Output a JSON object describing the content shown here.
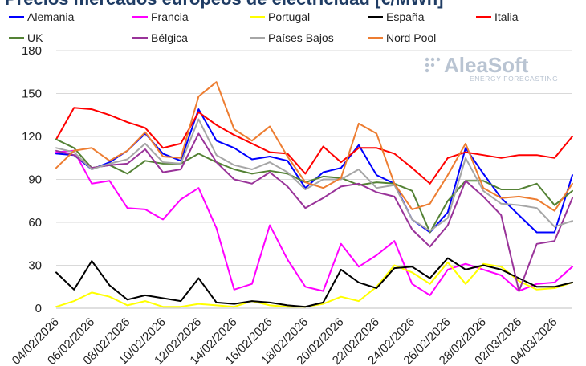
{
  "chart_data": {
    "type": "line",
    "title": "Precios mercados europeos de electricidad [€/MWh]",
    "ylim": [
      0,
      180
    ],
    "yticks": [
      0,
      30,
      60,
      90,
      120,
      150,
      180
    ],
    "xtick_labels": [
      "04/02/2026",
      "06/02/2026",
      "08/02/2026",
      "10/02/2026",
      "12/02/2026",
      "14/02/2026",
      "16/02/2026",
      "18/02/2026",
      "20/02/2026",
      "22/02/2026",
      "24/02/2026",
      "26/02/2026",
      "28/02/2026",
      "02/03/2026",
      "04/03/2026"
    ],
    "xtick_indices": [
      0,
      2,
      4,
      6,
      8,
      10,
      12,
      14,
      16,
      18,
      20,
      22,
      24,
      26,
      28
    ],
    "num_points": 30,
    "series": [
      {
        "name": "Alemania",
        "color": "#0000ff",
        "values": [
          108,
          107,
          97,
          102,
          110,
          122,
          108,
          103,
          139,
          117,
          112,
          104,
          106,
          103,
          84,
          95,
          98,
          114,
          93,
          87,
          62,
          53,
          67,
          112,
          94,
          77,
          65,
          53,
          53,
          93
        ]
      },
      {
        "name": "Francia",
        "color": "#ff00ff",
        "values": [
          109,
          110,
          87,
          89,
          70,
          69,
          62,
          76,
          84,
          56,
          13,
          17,
          58,
          34,
          15,
          12,
          45,
          29,
          37,
          47,
          17,
          9,
          27,
          31,
          27,
          23,
          12,
          17,
          18,
          29
        ]
      },
      {
        "name": "Portugal",
        "color": "#ffff00",
        "values": [
          1,
          5,
          11,
          8,
          2,
          5,
          1,
          1,
          3,
          2,
          1,
          5,
          2,
          1,
          1,
          3,
          8,
          5,
          15,
          30,
          25,
          17,
          32,
          17,
          31,
          29,
          19,
          13,
          14,
          18
        ]
      },
      {
        "name": "España",
        "color": "#000000",
        "values": [
          25,
          13,
          33,
          16,
          6,
          9,
          7,
          5,
          21,
          4,
          3,
          5,
          4,
          2,
          1,
          4,
          27,
          18,
          14,
          28,
          29,
          21,
          35,
          27,
          30,
          27,
          21,
          15,
          15,
          18
        ]
      },
      {
        "name": "Italia",
        "color": "#ff0000",
        "values": [
          118,
          140,
          139,
          135,
          130,
          126,
          112,
          115,
          137,
          128,
          121,
          115,
          109,
          108,
          94,
          113,
          102,
          112,
          112,
          108,
          98,
          87,
          105,
          109,
          107,
          105,
          107,
          107,
          105,
          120
        ]
      },
      {
        "name": "UK",
        "color": "#548235",
        "values": [
          118,
          112,
          98,
          100,
          94,
          103,
          101,
          101,
          108,
          102,
          97,
          94,
          96,
          94,
          88,
          92,
          91,
          86,
          88,
          87,
          82,
          53,
          75,
          89,
          89,
          83,
          83,
          87,
          72,
          82
        ]
      },
      {
        "name": "Bélgica",
        "color": "#993399",
        "values": [
          110,
          107,
          98,
          100,
          101,
          111,
          95,
          97,
          122,
          102,
          90,
          87,
          95,
          85,
          70,
          77,
          85,
          87,
          81,
          78,
          55,
          43,
          58,
          89,
          78,
          65,
          12,
          45,
          47,
          77
        ]
      },
      {
        "name": "Países Bajos",
        "color": "#a6a6a6",
        "values": [
          112,
          109,
          97,
          101,
          104,
          115,
          102,
          101,
          132,
          107,
          100,
          97,
          102,
          95,
          83,
          90,
          90,
          97,
          84,
          86,
          62,
          54,
          63,
          105,
          82,
          73,
          72,
          70,
          57,
          61
        ]
      },
      {
        "name": "Nord Pool",
        "color": "#ed7d31",
        "values": [
          98,
          110,
          112,
          103,
          110,
          123,
          106,
          105,
          148,
          158,
          125,
          117,
          127,
          106,
          88,
          84,
          91,
          129,
          122,
          87,
          69,
          73,
          93,
          115,
          84,
          77,
          78,
          76,
          68,
          87
        ]
      }
    ]
  },
  "branding": {
    "logo_main": "AleaSoft",
    "logo_sub": "ENERGY FORECASTING"
  }
}
